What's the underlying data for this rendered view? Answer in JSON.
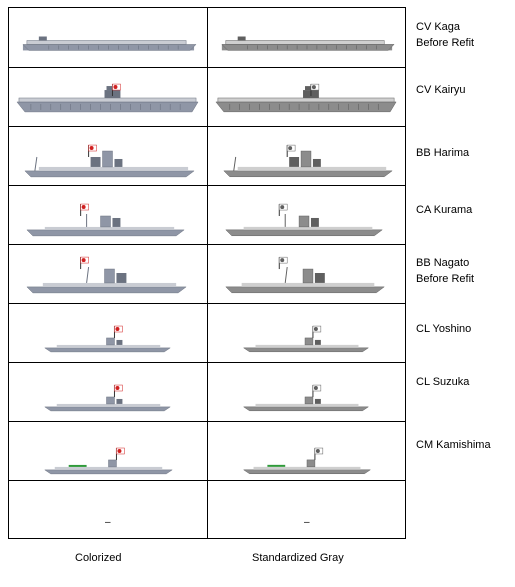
{
  "columns": [
    "Colorized",
    "Standardized Gray"
  ],
  "ships": [
    {
      "lines": [
        "CV Kaga",
        "Before Refit"
      ],
      "kind": "carrier-flat",
      "flag": false
    },
    {
      "lines": [
        "CV Kairyu"
      ],
      "kind": "carrier-island",
      "flag": true
    },
    {
      "lines": [
        "BB Harima"
      ],
      "kind": "battleship-big",
      "flag": true
    },
    {
      "lines": [
        "CA Kurama"
      ],
      "kind": "cruiser-heavy",
      "flag": true
    },
    {
      "lines": [
        "BB Nagato",
        "Before Refit"
      ],
      "kind": "battleship-old",
      "flag": true
    },
    {
      "lines": [
        "CL Yoshino"
      ],
      "kind": "cruiser-light",
      "flag": true
    },
    {
      "lines": [
        "CL Suzuka"
      ],
      "kind": "cruiser-light",
      "flag": true
    },
    {
      "lines": [
        "CM Kamishima"
      ],
      "kind": "minelayer",
      "flag": true
    },
    {
      "lines": [],
      "kind": "empty",
      "flag": false
    }
  ],
  "empty_marker": "–",
  "colors": {
    "hull": "#8f96a6",
    "hull_dark": "#6b7280",
    "deck": "#c9ccd3",
    "gray_hull": "#8c8c8c",
    "gray_dark": "#5f5f5f",
    "gray_deck": "#cfcfcf",
    "flag_red": "#d11f1f",
    "green": "#2f9a3a"
  }
}
